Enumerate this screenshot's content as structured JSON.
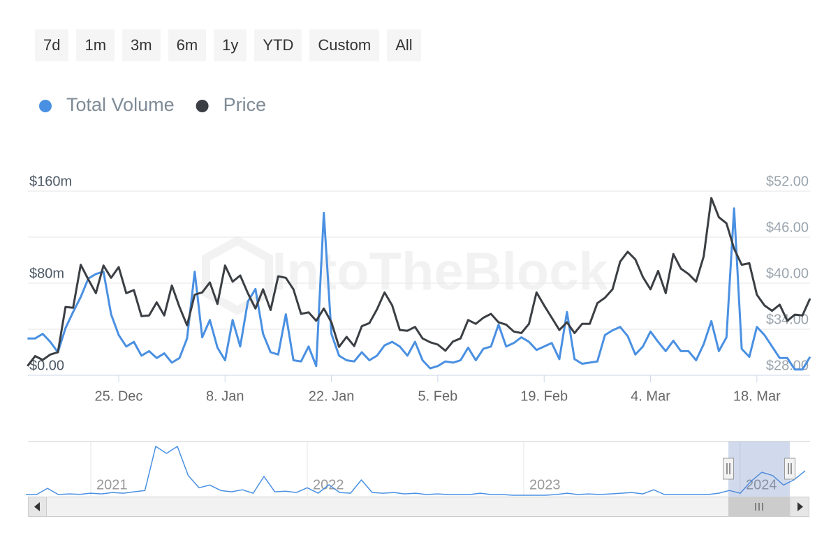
{
  "range_buttons": [
    "7d",
    "1m",
    "3m",
    "6m",
    "1y",
    "YTD",
    "Custom",
    "All"
  ],
  "chart_data": [
    {
      "type": "line",
      "watermark": "IntoTheBlock",
      "legend": "top-left",
      "grid": true,
      "categories": [
        null,
        null,
        null,
        null,
        null,
        null,
        null,
        null,
        null,
        null,
        null,
        null,
        "25. Dec",
        null,
        null,
        null,
        null,
        null,
        null,
        null,
        null,
        null,
        null,
        null,
        null,
        null,
        "8. Jan",
        null,
        null,
        null,
        null,
        null,
        null,
        null,
        null,
        null,
        null,
        null,
        null,
        null,
        "22. Jan",
        null,
        null,
        null,
        null,
        null,
        null,
        null,
        null,
        null,
        null,
        null,
        null,
        null,
        "5. Feb",
        null,
        null,
        null,
        null,
        null,
        null,
        null,
        null,
        null,
        null,
        null,
        null,
        null,
        "19. Feb",
        null,
        null,
        null,
        null,
        null,
        null,
        null,
        null,
        null,
        null,
        null,
        null,
        null,
        "4. Mar",
        null,
        null,
        null,
        null,
        null,
        null,
        null,
        null,
        null,
        null,
        null,
        null,
        null,
        "18. Mar",
        null,
        null,
        null,
        null,
        null,
        null,
        null
      ],
      "series": [
        {
          "name": "Total Volume",
          "color": "#4a90e2",
          "values": [
            32,
            32,
            36,
            29,
            20,
            41,
            55,
            68,
            84,
            88,
            90,
            53,
            35,
            25,
            29,
            17,
            21,
            15,
            19,
            11,
            15,
            32,
            90,
            33,
            48,
            24,
            13,
            48,
            25,
            64,
            75,
            36,
            20,
            18,
            53,
            13,
            12,
            25,
            8,
            141,
            36,
            17,
            13,
            12,
            20,
            13,
            17,
            26,
            29,
            25,
            17,
            29,
            13,
            6,
            8,
            12,
            11,
            13,
            24,
            13,
            23,
            25,
            44,
            25,
            28,
            33,
            29,
            22,
            25,
            28,
            14,
            55,
            14,
            10,
            11,
            12,
            35,
            39,
            42,
            34,
            18,
            25,
            38,
            29,
            21,
            30,
            21,
            21,
            13,
            27,
            47,
            21,
            33,
            145,
            23,
            16,
            42,
            35,
            25,
            15,
            15,
            5,
            5,
            16
          ]
        },
        {
          "name": "Price",
          "color": "#3b3f44",
          "axis": "y2",
          "values": [
            29.2,
            30.5,
            30.0,
            30.7,
            31.0,
            36.9,
            36.8,
            42.4,
            40.5,
            38.7,
            42.3,
            40.7,
            42.1,
            38.7,
            39.1,
            35.7,
            35.8,
            37.5,
            35.8,
            39.7,
            36.9,
            34.5,
            38.5,
            38.8,
            40.1,
            37.3,
            42.3,
            40.2,
            41.0,
            38.7,
            36.7,
            39.2,
            36.5,
            40.9,
            40.7,
            39.2,
            36.0,
            36.2,
            35.1,
            36.7,
            34.9,
            31.7,
            33.0,
            31.8,
            34.4,
            34.8,
            36.6,
            38.8,
            37.1,
            33.9,
            33.8,
            34.3,
            32.8,
            32.3,
            32.0,
            31.2,
            32.4,
            32.8,
            35.2,
            34.7,
            35.5,
            36.0,
            34.9,
            34.6,
            33.7,
            33.5,
            34.7,
            38.8,
            37.1,
            35.5,
            33.9,
            34.9,
            33.5,
            34.7,
            34.7,
            37.4,
            38.1,
            39.2,
            42.8,
            44.1,
            43.1,
            40.8,
            39.2,
            41.6,
            38.7,
            43.8,
            41.9,
            41.2,
            40.2,
            43.5,
            51.1,
            48.6,
            47.8,
            44.5,
            42.4,
            42.6,
            38.5,
            37.1,
            36.4,
            37.2,
            35.1,
            35.9,
            35.8,
            38.0
          ]
        }
      ],
      "ylim": [
        0,
        160
      ],
      "yticks": [
        {
          "value": 0,
          "label": "$0.00"
        },
        {
          "value": 80,
          "label": "$80m"
        },
        {
          "value": 160,
          "label": "$160m"
        }
      ],
      "y2lim": [
        28,
        52
      ],
      "y2ticks": [
        {
          "value": 28,
          "label": "$28.00"
        },
        {
          "value": 34,
          "label": "$34.00"
        },
        {
          "value": 40,
          "label": "$40.00"
        },
        {
          "value": 46,
          "label": "$46.00"
        },
        {
          "value": 52,
          "label": "$52.00"
        }
      ]
    },
    {
      "type": "line",
      "categories": [
        null,
        null,
        null,
        null,
        null,
        null,
        "2021",
        null,
        null,
        null,
        null,
        null,
        null,
        null,
        null,
        null,
        null,
        null,
        null,
        null,
        null,
        null,
        null,
        null,
        null,
        null,
        "2022",
        null,
        null,
        null,
        null,
        null,
        null,
        null,
        null,
        null,
        null,
        null,
        null,
        null,
        null,
        null,
        null,
        null,
        null,
        null,
        "2023",
        null,
        null,
        null,
        null,
        null,
        null,
        null,
        null,
        null,
        null,
        null,
        null,
        null,
        null,
        null,
        null,
        null,
        null,
        null,
        "2024",
        null,
        null,
        null,
        null,
        null,
        null
      ],
      "series": [
        {
          "color": "#4a90e2",
          "values": [
            10,
            10,
            56,
            10,
            15,
            12,
            20,
            15,
            25,
            20,
            30,
            40,
            364,
            313,
            364,
            150,
            60,
            80,
            40,
            30,
            45,
            20,
            143,
            30,
            35,
            25,
            60,
            20,
            82,
            25,
            20,
            118,
            25,
            20,
            25,
            15,
            20,
            10,
            15,
            10,
            10,
            10,
            20,
            10,
            10,
            5,
            5,
            5,
            5,
            10,
            20,
            10,
            15,
            10,
            15,
            20,
            25,
            15,
            45,
            10,
            10,
            10,
            10,
            10,
            20,
            40,
            20,
            108,
            174,
            150,
            80,
            120,
            185
          ]
        }
      ],
      "ylim": [
        0,
        400
      ]
    }
  ]
}
